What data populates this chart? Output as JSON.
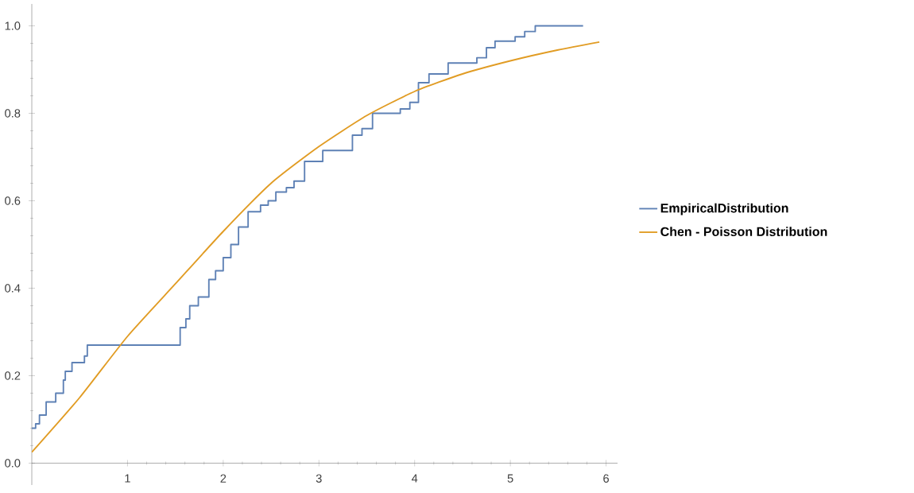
{
  "chart_data": {
    "type": "line",
    "xlim": [
      0,
      6.12
    ],
    "ylim": [
      -0.05,
      1.05
    ],
    "xticks": [
      1,
      2,
      3,
      4,
      5,
      6
    ],
    "yticks": [
      {
        "value": 0,
        "label": "0.0"
      },
      {
        "value": 0.2,
        "label": "0.2"
      },
      {
        "value": 0.4,
        "label": "0.4"
      },
      {
        "value": 0.6,
        "label": "0.6"
      },
      {
        "value": 0.8,
        "label": "0.8"
      },
      {
        "value": 1,
        "label": "1.0"
      }
    ],
    "legend": "right",
    "grid": false,
    "series": [
      {
        "name": "EmpiricalDistribution",
        "type": "step",
        "color": "#5e81b5",
        "x": [
          0,
          0.04,
          0.08,
          0.15,
          0.25,
          0.33,
          0.35,
          0.42,
          0.55,
          0.58,
          1.55,
          1.61,
          1.65,
          1.74,
          1.85,
          1.92,
          2.0,
          2.08,
          2.16,
          2.26,
          2.39,
          2.47,
          2.55,
          2.66,
          2.74,
          2.85,
          3.04,
          3.35,
          3.45,
          3.56,
          3.85,
          3.95,
          4.04,
          4.15,
          4.35,
          4.65,
          4.75,
          4.84,
          5.05,
          5.15,
          5.26,
          5.76
        ],
        "values": [
          0.08,
          0.09,
          0.11,
          0.14,
          0.16,
          0.19,
          0.21,
          0.23,
          0.245,
          0.27,
          0.31,
          0.33,
          0.36,
          0.38,
          0.42,
          0.44,
          0.47,
          0.5,
          0.54,
          0.575,
          0.59,
          0.6,
          0.62,
          0.63,
          0.645,
          0.69,
          0.715,
          0.75,
          0.765,
          0.8,
          0.81,
          0.825,
          0.87,
          0.89,
          0.915,
          0.927,
          0.95,
          0.965,
          0.975,
          0.987,
          1.0,
          1.0
        ]
      },
      {
        "name": "Chen - Poisson Distribution",
        "color": "#e19c24",
        "x": [
          0,
          0.5,
          1.0,
          1.5,
          2.0,
          2.5,
          3.0,
          3.5,
          4.0,
          4.5,
          5.0,
          5.5,
          5.93
        ],
        "values": [
          0.025,
          0.15,
          0.29,
          0.41,
          0.53,
          0.64,
          0.724,
          0.795,
          0.85,
          0.89,
          0.92,
          0.945,
          0.963
        ]
      }
    ]
  }
}
